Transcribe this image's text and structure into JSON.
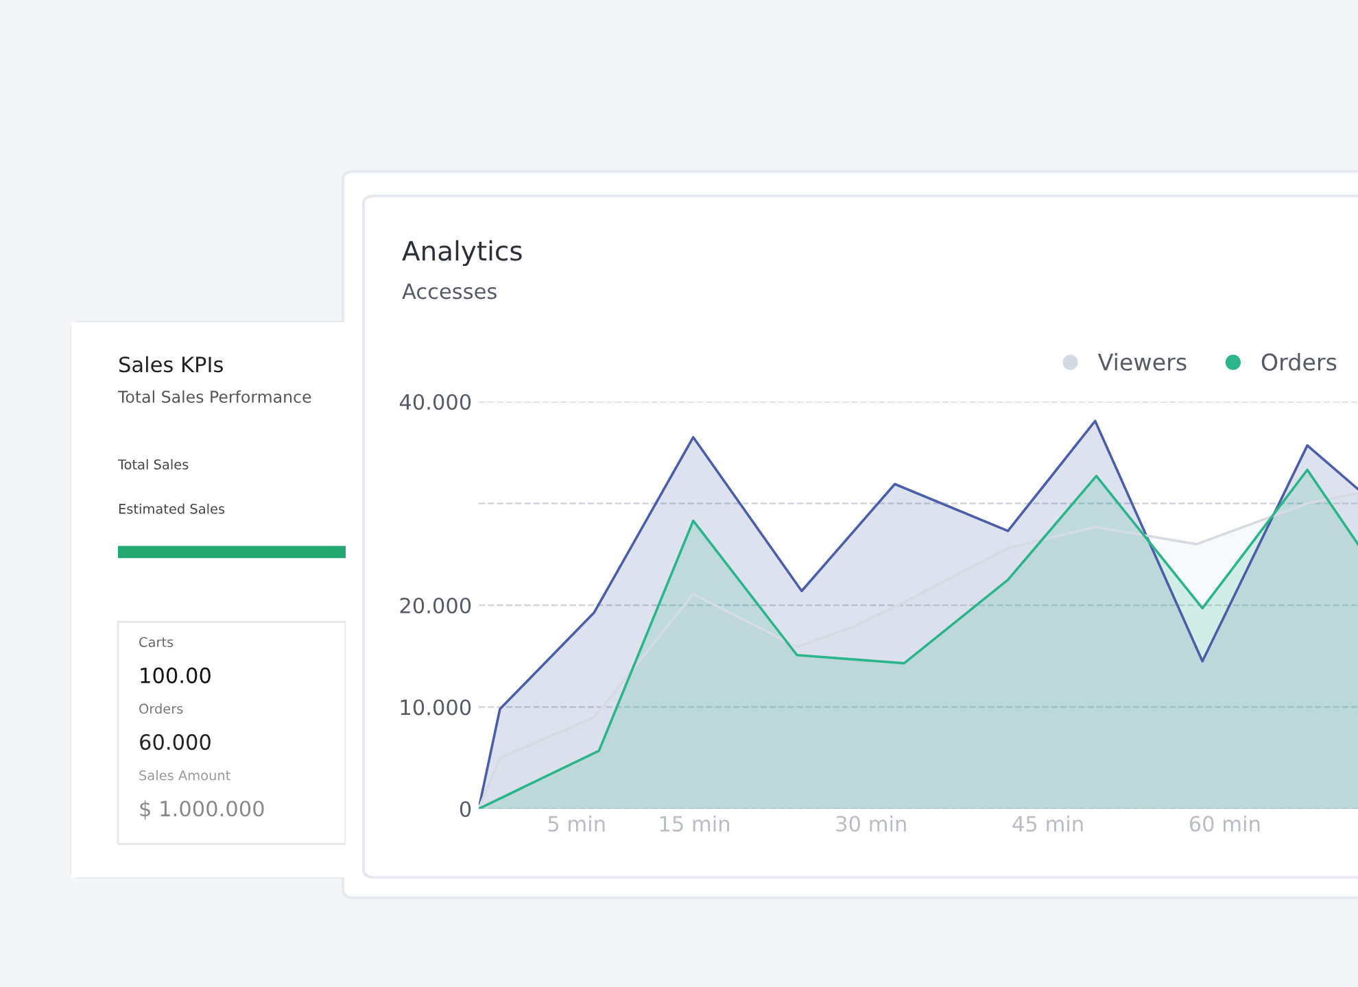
{
  "chart_data": [
    {
      "type": "area",
      "title": "Analytics",
      "subtitle": "Accesses",
      "xlim": [
        -3.3,
        71.3
      ],
      "xticks": [
        {
          "value": 5,
          "label": "5 min"
        },
        {
          "value": 15,
          "label": "15 min"
        },
        {
          "value": 30,
          "label": "30 min"
        },
        {
          "value": 45,
          "label": "45 min"
        },
        {
          "value": 60,
          "label": "60 min"
        }
      ],
      "ylim": [
        0,
        40
      ],
      "yticks": [
        0,
        {
          "value": 10,
          "label": "10.000"
        },
        {
          "value": 20,
          "label": "20.000"
        },
        {
          "value": 30,
          "label": null
        },
        {
          "value": 40,
          "label": "40.000"
        }
      ],
      "grid": "y",
      "legend": "top right",
      "line_style": "solid",
      "series": [
        {
          "color": "#4a5fa8",
          "x": [
            -3.3,
            -1.5,
            6.5,
            14.9,
            24.1,
            32.0,
            41.6,
            49.0,
            58.1,
            67.0,
            71.3
          ],
          "values": [
            0,
            9.8,
            19.3,
            36.5,
            21.4,
            31.9,
            27.3,
            38.1,
            14.5,
            35.7,
            31.4
          ]
        },
        {
          "name": "Viewers",
          "color": "#d5dae3",
          "x": [
            -3.3,
            -1.5,
            6.5,
            14.9,
            23.7,
            28.3,
            32.1,
            41.6,
            49.0,
            57.6,
            67.0,
            71.3
          ],
          "values": [
            0,
            5.0,
            9.0,
            21.1,
            15.9,
            17.8,
            19.9,
            25.6,
            27.7,
            26.0,
            30.0,
            31.0
          ]
        },
        {
          "name": "Orders",
          "color": "#2bb58a",
          "x": [
            -3.3,
            6.9,
            14.9,
            23.7,
            32.8,
            41.6,
            49.1,
            58.1,
            67.0,
            71.3
          ],
          "values": [
            0,
            5.7,
            28.3,
            15.1,
            14.3,
            22.5,
            32.7,
            19.7,
            33.3,
            26.0
          ]
        }
      ]
    },
    {
      "type": "other",
      "title": "Sales KPIs",
      "subtitle": "Total Sales Performance",
      "annotations": [
        "Total Sales",
        "Estimated Sales",
        "Carts",
        "100.00",
        "Orders",
        "60.000",
        "Sales Amount",
        "$ 1.000.000"
      ]
    }
  ]
}
